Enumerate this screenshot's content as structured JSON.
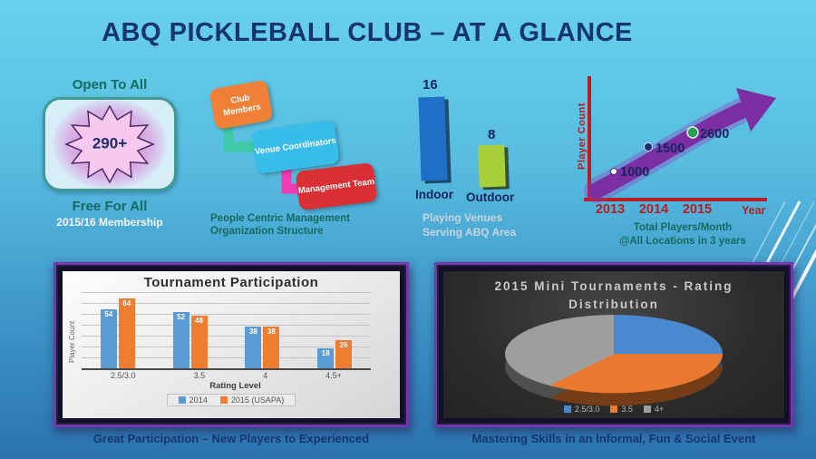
{
  "slide": {
    "title": "ABQ PICKLEBALL CLUB – AT A GLANCE",
    "colors": {
      "background_top": "#68d1ec",
      "background_bottom": "#2b72b0",
      "title_text": "#16356f",
      "teal_text": "#156b60",
      "axis_red": "#b51f24",
      "arrow_purple": "#7b2fa3",
      "panel_border_purple": "#7338ae"
    }
  },
  "membership": {
    "top_label": "Open To All",
    "count": "290+",
    "bottom_label": "Free For All",
    "sub_label": "2015/16 Membership"
  },
  "org_chart": {
    "nodes": [
      {
        "label": "Club Members",
        "color": "#f08038"
      },
      {
        "label": "Venue Coordinators",
        "color": "#38bde8"
      },
      {
        "label": "Management Team",
        "color": "#d92f35"
      }
    ],
    "arrow_colors": [
      "#3fc9a6",
      "#f23cb4"
    ],
    "caption_lines": [
      "People Centric Management",
      "Organization Structure"
    ]
  },
  "captions": {
    "tournament": "Great Participation – New Players to Experienced",
    "pie": "Mastering Skills in an Informal, Fun & Social Event"
  },
  "chart_data": [
    {
      "id": "playing_venues",
      "type": "bar",
      "categories": [
        "Indoor",
        "Outdoor"
      ],
      "values": [
        16,
        8
      ],
      "colors": [
        "#1e6fc6",
        "#a8cf3a"
      ],
      "ylim": [
        0,
        16
      ],
      "caption_lines": [
        "Playing Venues",
        "Serving ABQ Area"
      ]
    },
    {
      "id": "player_growth",
      "type": "line",
      "x": [
        "2013",
        "2014",
        "2015"
      ],
      "values": [
        1000,
        1500,
        2600
      ],
      "point_colors": [
        "#ffffff",
        "#1a2f6e",
        "#2e9e57"
      ],
      "xlabel": "Year",
      "ylabel": "Player Count",
      "caption_lines": [
        "Total Players/Month",
        "@All Locations in 3 years"
      ]
    },
    {
      "id": "tournament_participation",
      "type": "bar",
      "title": "Tournament Participation",
      "categories": [
        "2.5/3.0",
        "3.5",
        "4",
        "4.5+"
      ],
      "series": [
        {
          "name": "2014",
          "color": "#5b9bd5",
          "values": [
            54,
            52,
            38,
            18
          ]
        },
        {
          "name": "2015 (USAPA)",
          "color": "#ed7d31",
          "values": [
            64,
            48,
            38,
            26
          ]
        }
      ],
      "xlabel": "Rating Level",
      "ylabel": "Player Count",
      "ylim": [
        0,
        70
      ],
      "grid": true,
      "legend_position": "bottom"
    },
    {
      "id": "rating_distribution",
      "type": "pie",
      "title_lines": [
        "2015 Mini Tournaments - Rating",
        "Distribution"
      ],
      "labels": [
        "2.5/3.0",
        "3.5",
        "4+"
      ],
      "values": [
        25,
        35,
        40
      ],
      "colors": [
        "#4a89d0",
        "#e8792e",
        "#9e9e9e"
      ],
      "legend_position": "bottom"
    }
  ]
}
